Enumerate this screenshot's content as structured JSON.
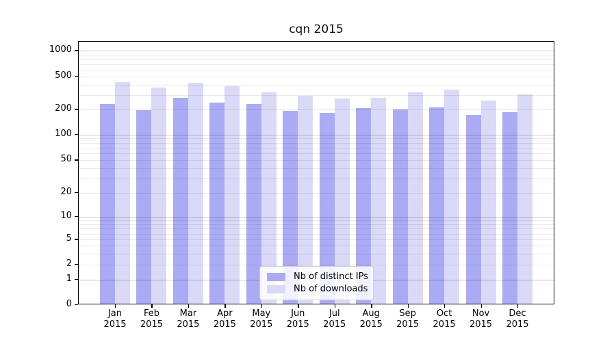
{
  "title": "cqn 2015",
  "colors": {
    "ips": "#aaaaf5",
    "downloads": "#dadaf8",
    "spine": "#000000",
    "grid_major": "rgba(0,0,0,0.22)",
    "grid_minor": "rgba(0,0,0,0.085)"
  },
  "legend": {
    "items": [
      {
        "label": "Nb of distinct IPs",
        "series": "ips"
      },
      {
        "label": "Nb of downloads",
        "series": "downloads"
      }
    ]
  },
  "y_axis": {
    "tick_labels": [
      "0",
      "1",
      "2",
      "5",
      "10",
      "20",
      "50",
      "100",
      "200",
      "500",
      "1000"
    ]
  },
  "x_axis": {
    "months": [
      "Jan",
      "Feb",
      "Mar",
      "Apr",
      "May",
      "Jun",
      "Jul",
      "Aug",
      "Sep",
      "Oct",
      "Nov",
      "Dec"
    ],
    "year": "2015"
  },
  "chart_data": {
    "type": "bar",
    "title": "cqn 2015",
    "categories": [
      "Jan 2015",
      "Feb 2015",
      "Mar 2015",
      "Apr 2015",
      "May 2015",
      "Jun 2015",
      "Jul 2015",
      "Aug 2015",
      "Sep 2015",
      "Oct 2015",
      "Nov 2015",
      "Dec 2015"
    ],
    "series": [
      {
        "name": "Nb of distinct IPs",
        "color": "#aaaaf5",
        "values": [
          235,
          198,
          277,
          243,
          233,
          194,
          182,
          209,
          200,
          212,
          174,
          188
        ]
      },
      {
        "name": "Nb of downloads",
        "color": "#dadaf8",
        "values": [
          430,
          365,
          420,
          385,
          320,
          295,
          273,
          275,
          325,
          347,
          255,
          305
        ]
      }
    ],
    "y_scale": "symlog",
    "y_ticks": [
      0,
      1,
      2,
      5,
      10,
      20,
      50,
      100,
      200,
      500,
      1000
    ],
    "ylim": [
      0,
      1300
    ],
    "xlabel": "",
    "ylabel": "",
    "grid": true,
    "grid_minor": true,
    "legend_position": "lower center"
  }
}
